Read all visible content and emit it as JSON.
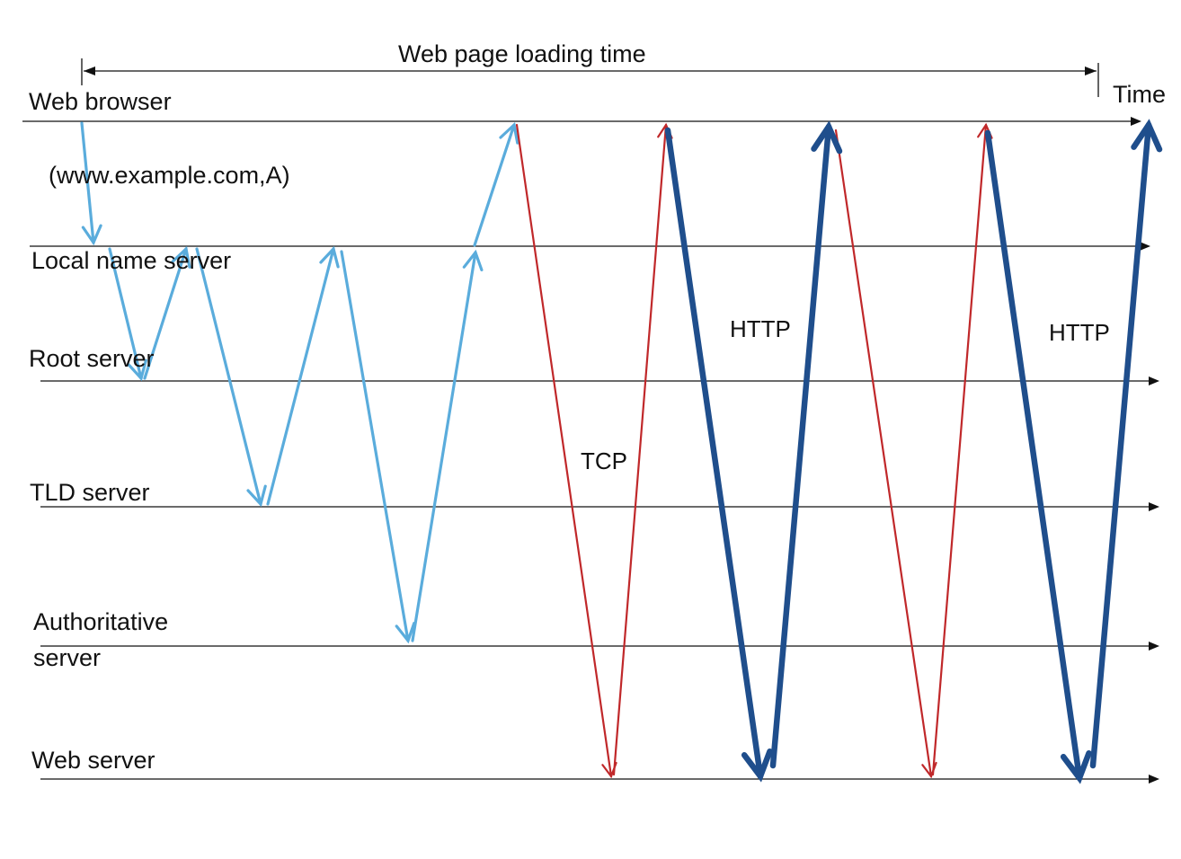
{
  "title": "Web page loading time",
  "time_label": "Time",
  "query_label": "(www.example.com,A)",
  "entities": {
    "browser": "Web browser",
    "local": "Local name server",
    "root": "Root server",
    "tld": "TLD server",
    "auth_line1": "Authoritative",
    "auth_line2": "server",
    "web": "Web server"
  },
  "protocols": {
    "tcp": "TCP",
    "http_1": "HTTP",
    "http_2": "HTTP"
  },
  "colors": {
    "dns": "#5aacdc",
    "tcp": "#c0282a",
    "http": "#1f4e8c",
    "line": "#111111"
  }
}
